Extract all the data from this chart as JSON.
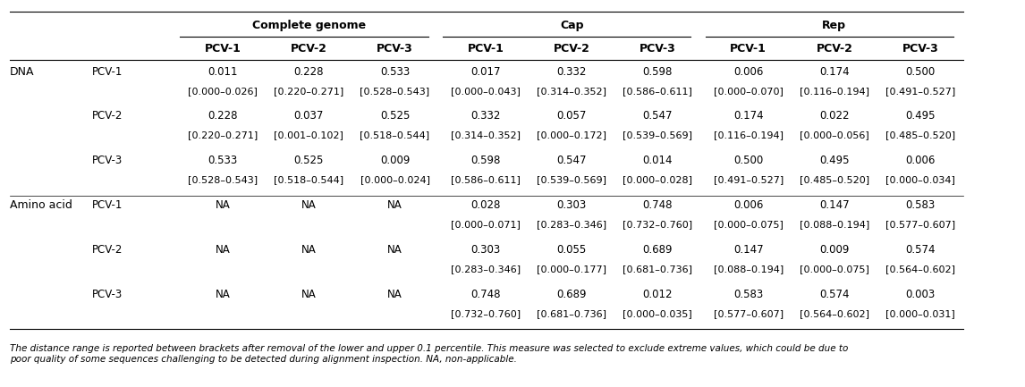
{
  "title_complete": "Complete genome",
  "title_cap": "Cap",
  "title_rep": "Rep",
  "col_headers": [
    "PCV-1",
    "PCV-2",
    "PCV-3",
    "PCV-1",
    "PCV-2",
    "PCV-3",
    "PCV-1",
    "PCV-2",
    "PCV-3"
  ],
  "row_groups": [
    {
      "group": "DNA",
      "rows": [
        {
          "label": "PCV-1",
          "values": [
            "0.011\n[0.000–0.026]",
            "0.228\n[0.220–0.271]",
            "0.533\n[0.528–0.543]",
            "0.017\n[0.000–0.043]",
            "0.332\n[0.314–0.352]",
            "0.598\n[0.586–0.611]",
            "0.006\n[0.000–0.070]",
            "0.174\n[0.116–0.194]",
            "0.500\n[0.491–0.527]"
          ]
        },
        {
          "label": "PCV-2",
          "values": [
            "0.228\n[0.220–0.271]",
            "0.037\n[0.001–0.102]",
            "0.525\n[0.518–0.544]",
            "0.332\n[0.314–0.352]",
            "0.057\n[0.000–0.172]",
            "0.547\n[0.539–0.569]",
            "0.174\n[0.116–0.194]",
            "0.022\n[0.000–0.056]",
            "0.495\n[0.485–0.520]"
          ]
        },
        {
          "label": "PCV-3",
          "values": [
            "0.533\n[0.528–0.543]",
            "0.525\n[0.518–0.544]",
            "0.009\n[0.000–0.024]",
            "0.598\n[0.586–0.611]",
            "0.547\n[0.539–0.569]",
            "0.014\n[0.000–0.028]",
            "0.500\n[0.491–0.527]",
            "0.495\n[0.485–0.520]",
            "0.006\n[0.000–0.034]"
          ]
        }
      ]
    },
    {
      "group": "Amino acid",
      "rows": [
        {
          "label": "PCV-1",
          "values": [
            "NA",
            "NA",
            "NA",
            "0.028\n[0.000–0.071]",
            "0.303\n[0.283–0.346]",
            "0.748\n[0.732–0.760]",
            "0.006\n[0.000–0.075]",
            "0.147\n[0.088–0.194]",
            "0.583\n[0.577–0.607]"
          ]
        },
        {
          "label": "PCV-2",
          "values": [
            "NA",
            "NA",
            "NA",
            "0.303\n[0.283–0.346]",
            "0.055\n[0.000–0.177]",
            "0.689\n[0.681–0.736]",
            "0.147\n[0.088–0.194]",
            "0.009\n[0.000–0.075]",
            "0.574\n[0.564–0.602]"
          ]
        },
        {
          "label": "PCV-3",
          "values": [
            "NA",
            "NA",
            "NA",
            "0.748\n[0.732–0.760]",
            "0.689\n[0.681–0.736]",
            "0.012\n[0.000–0.035]",
            "0.583\n[0.577–0.607]",
            "0.574\n[0.564–0.602]",
            "0.003\n[0.000–0.031]"
          ]
        }
      ]
    }
  ],
  "footnote": "The distance range is reported between brackets after removal of the lower and upper 0.1 percentile. This measure was selected to exclude extreme values, which could be due to\npoor quality of some sequences challenging to be detected during alignment inspection. NA, non-applicable.",
  "bg_color": "#ffffff",
  "text_color": "#000000",
  "header_fontsize": 9,
  "cell_fontsize": 8.5,
  "group_fontsize": 9,
  "footnote_fontsize": 7.5
}
